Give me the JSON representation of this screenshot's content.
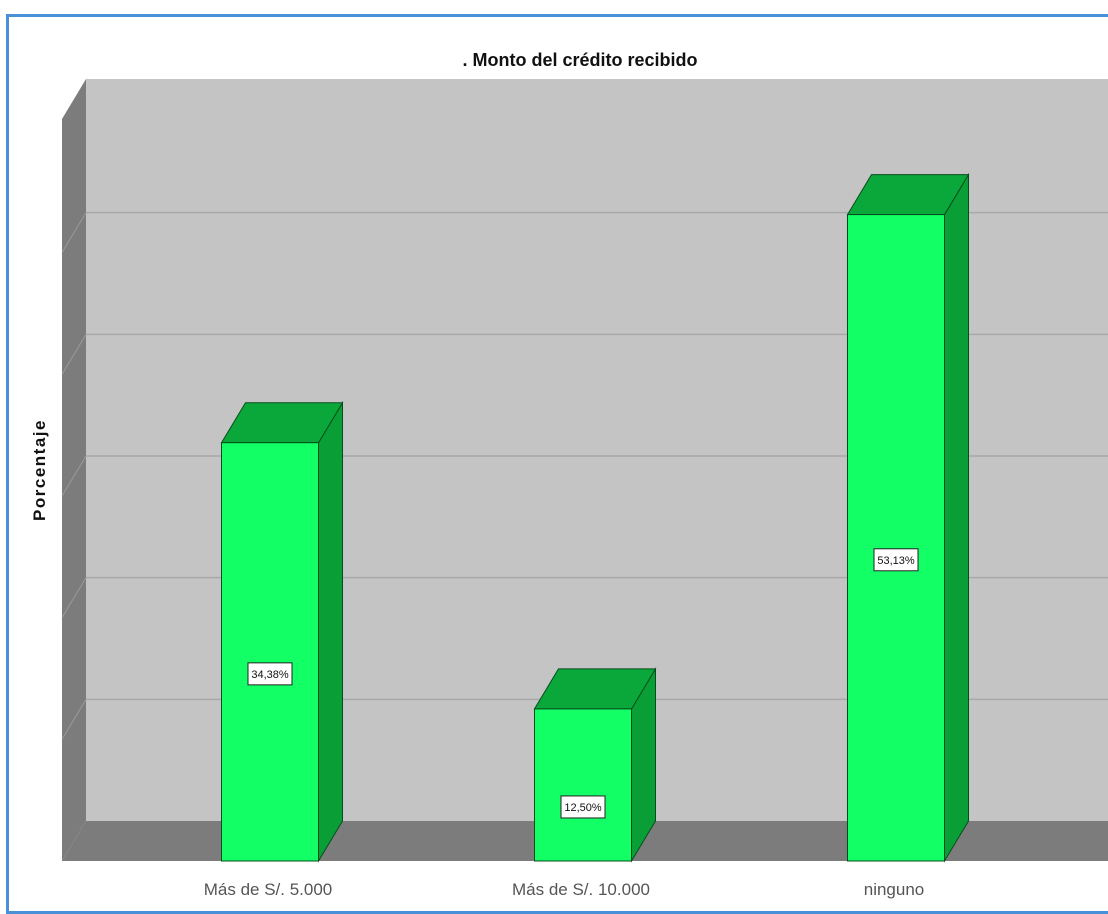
{
  "chart_data": {
    "type": "bar",
    "title": ". Monto del crédito recibido",
    "ylabel": "Porcentaje",
    "xlabel": "",
    "categories": [
      "Más de S/. 5.000",
      "Más de S/. 10.000",
      "ninguno"
    ],
    "values": [
      34.38,
      12.5,
      53.13
    ],
    "data_labels": [
      "34,38%",
      "12,50%",
      "53,13%"
    ],
    "ylim": [
      0,
      60
    ],
    "grid": true,
    "style": "3d",
    "colors": {
      "bar_front": "#12ff66",
      "bar_top": "#0aa83a",
      "bar_side": "#0a9e37",
      "plot_bg": "#c4c4c4",
      "left_wall": "#7c7c7c",
      "floor": "#7c7c7c",
      "frame_border": "#4a90d9"
    }
  }
}
